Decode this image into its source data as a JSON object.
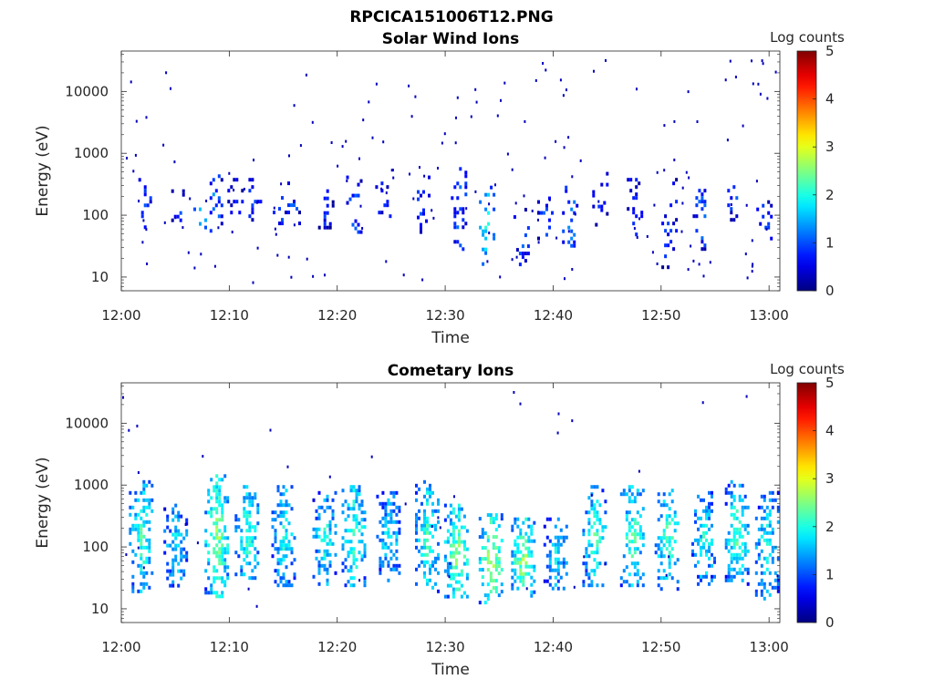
{
  "figure": {
    "title": "RPCICA151006T12.PNG"
  },
  "colorbar": {
    "title": "Log counts",
    "ticks": [
      "0",
      "1",
      "2",
      "3",
      "4",
      "5"
    ],
    "range": [
      0,
      5
    ],
    "colormap": "jet"
  },
  "chart_data": [
    {
      "type": "heatmap",
      "title": "Solar Wind Ions",
      "xlabel": "Time",
      "ylabel": "Energy (eV)",
      "xticks": [
        "12:00",
        "12:10",
        "12:20",
        "12:30",
        "12:40",
        "12:50",
        "13:00"
      ],
      "xlim_minutes": [
        0,
        61
      ],
      "yticks": [
        "10",
        "100",
        "1000",
        "10000"
      ],
      "yscale": "log",
      "ylim": [
        6,
        45000
      ],
      "color_scale": "Log counts",
      "clim": [
        0,
        5
      ],
      "events": [
        {
          "t": 2.0,
          "e_lo": 60,
          "e_hi": 600,
          "c": 0.9
        },
        {
          "t": 5.3,
          "e_lo": 80,
          "e_hi": 300,
          "c": 0.9
        },
        {
          "t": 7.1,
          "e_lo": 60,
          "e_hi": 200,
          "c": 1.9
        },
        {
          "t": 8.6,
          "e_lo": 50,
          "e_hi": 600,
          "c": 1.2
        },
        {
          "t": 10.5,
          "e_lo": 70,
          "e_hi": 400,
          "c": 0.8
        },
        {
          "t": 12.2,
          "e_lo": 80,
          "e_hi": 400,
          "c": 0.8
        },
        {
          "t": 14.7,
          "e_lo": 70,
          "e_hi": 350,
          "c": 0.9
        },
        {
          "t": 15.8,
          "e_lo": 70,
          "e_hi": 350,
          "c": 0.9
        },
        {
          "t": 18.9,
          "e_lo": 60,
          "e_hi": 300,
          "c": 0.8
        },
        {
          "t": 21.5,
          "e_lo": 50,
          "e_hi": 500,
          "c": 1.2
        },
        {
          "t": 24.2,
          "e_lo": 70,
          "e_hi": 400,
          "c": 0.8
        },
        {
          "t": 27.8,
          "e_lo": 50,
          "e_hi": 500,
          "c": 0.9
        },
        {
          "t": 31.2,
          "e_lo": 30,
          "e_hi": 600,
          "c": 1.1
        },
        {
          "t": 33.8,
          "e_lo": 15,
          "e_hi": 300,
          "c": 2.0
        },
        {
          "t": 37.0,
          "e_lo": 12,
          "e_hi": 150,
          "c": 1.0
        },
        {
          "t": 39.2,
          "e_lo": 40,
          "e_hi": 200,
          "c": 0.9
        },
        {
          "t": 41.5,
          "e_lo": 30,
          "e_hi": 300,
          "c": 1.3
        },
        {
          "t": 44.3,
          "e_lo": 60,
          "e_hi": 500,
          "c": 0.9
        },
        {
          "t": 47.5,
          "e_lo": 40,
          "e_hi": 400,
          "c": 0.8
        },
        {
          "t": 50.7,
          "e_lo": 15,
          "e_hi": 400,
          "c": 0.9
        },
        {
          "t": 53.6,
          "e_lo": 30,
          "e_hi": 400,
          "c": 1.0
        },
        {
          "t": 56.8,
          "e_lo": 80,
          "e_hi": 400,
          "c": 0.9
        },
        {
          "t": 59.5,
          "e_lo": 30,
          "e_hi": 300,
          "c": 0.8
        }
      ]
    },
    {
      "type": "heatmap",
      "title": "Cometary Ions",
      "xlabel": "Time",
      "ylabel": "Energy (eV)",
      "xticks": [
        "12:00",
        "12:10",
        "12:20",
        "12:30",
        "12:40",
        "12:50",
        "13:00"
      ],
      "xlim_minutes": [
        0,
        61
      ],
      "yticks": [
        "10",
        "100",
        "1000",
        "10000"
      ],
      "yscale": "log",
      "ylim": [
        6,
        45000
      ],
      "color_scale": "Log counts",
      "clim": [
        0,
        5
      ],
      "events": [
        {
          "t": 1.8,
          "e_lo": 20,
          "e_hi": 1200,
          "c": 2.2
        },
        {
          "t": 5.0,
          "e_lo": 25,
          "e_hi": 500,
          "c": 1.8
        },
        {
          "t": 8.8,
          "e_lo": 15,
          "e_hi": 1500,
          "c": 2.6
        },
        {
          "t": 11.6,
          "e_lo": 30,
          "e_hi": 1000,
          "c": 2.2
        },
        {
          "t": 15.0,
          "e_lo": 25,
          "e_hi": 1000,
          "c": 2.0
        },
        {
          "t": 18.8,
          "e_lo": 25,
          "e_hi": 800,
          "c": 2.0
        },
        {
          "t": 21.5,
          "e_lo": 25,
          "e_hi": 1000,
          "c": 2.3
        },
        {
          "t": 24.7,
          "e_lo": 30,
          "e_hi": 800,
          "c": 1.8
        },
        {
          "t": 28.3,
          "e_lo": 20,
          "e_hi": 1200,
          "c": 2.2
        },
        {
          "t": 31.0,
          "e_lo": 15,
          "e_hi": 500,
          "c": 2.6
        },
        {
          "t": 34.2,
          "e_lo": 12,
          "e_hi": 350,
          "c": 2.8
        },
        {
          "t": 37.2,
          "e_lo": 12,
          "e_hi": 300,
          "c": 2.7
        },
        {
          "t": 40.2,
          "e_lo": 20,
          "e_hi": 300,
          "c": 1.8
        },
        {
          "t": 43.8,
          "e_lo": 20,
          "e_hi": 1000,
          "c": 2.2
        },
        {
          "t": 47.3,
          "e_lo": 25,
          "e_hi": 1000,
          "c": 2.3
        },
        {
          "t": 50.5,
          "e_lo": 20,
          "e_hi": 1000,
          "c": 2.3
        },
        {
          "t": 53.9,
          "e_lo": 25,
          "e_hi": 800,
          "c": 2.0
        },
        {
          "t": 57.0,
          "e_lo": 25,
          "e_hi": 1200,
          "c": 2.3
        },
        {
          "t": 59.8,
          "e_lo": 15,
          "e_hi": 800,
          "c": 2.0
        }
      ]
    }
  ]
}
